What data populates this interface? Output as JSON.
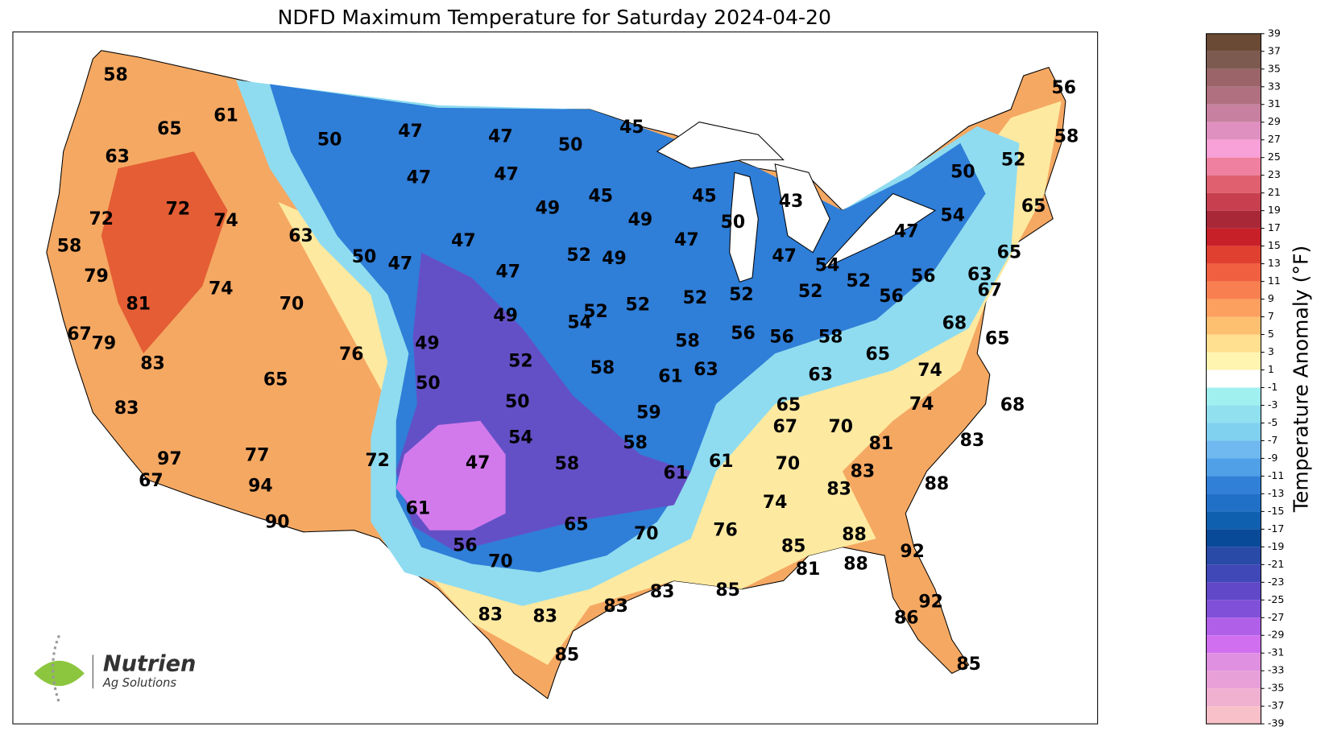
{
  "title": "NDFD Maximum Temperature for Saturday 2024-04-20",
  "map": {
    "labels": [
      58,
      65,
      61,
      50,
      47,
      47,
      50,
      45,
      63,
      47,
      47,
      52,
      50,
      56,
      58,
      72,
      74,
      72,
      49,
      45,
      49,
      45,
      50,
      43,
      65,
      54,
      47,
      58,
      63,
      47,
      50,
      47,
      52,
      49,
      47,
      65,
      79,
      74,
      47,
      47,
      54,
      52,
      56,
      63,
      81,
      70,
      49,
      52,
      54,
      52,
      52,
      52,
      52,
      56,
      67,
      67,
      79,
      49,
      58,
      56,
      56,
      58,
      68,
      65,
      83,
      76,
      52,
      58,
      61,
      63,
      63,
      65,
      74,
      65,
      50,
      50,
      65,
      74,
      68,
      83,
      59,
      67,
      70,
      81,
      83,
      97,
      77,
      72,
      54,
      47,
      58,
      58,
      61,
      61,
      70,
      83,
      88,
      67,
      94,
      83,
      74,
      61,
      65,
      70,
      76,
      88,
      92,
      90,
      56,
      70,
      85,
      81,
      88,
      83,
      85,
      83,
      83,
      83,
      92,
      86,
      85,
      85
    ]
  },
  "colorbar": {
    "label": "Temperature Anomaly (°F)",
    "lim": [
      -39,
      39
    ],
    "ticks": [
      39,
      37,
      35,
      33,
      31,
      29,
      27,
      25,
      23,
      21,
      19,
      17,
      15,
      13,
      11,
      9,
      7,
      5,
      3,
      1,
      -1,
      -3,
      -5,
      -7,
      -9,
      -11,
      -13,
      -15,
      -17,
      -19,
      -21,
      -23,
      -25,
      -27,
      -29,
      -31,
      -33,
      -35,
      -37,
      -39
    ],
    "colors": [
      "#6b4a35",
      "#7d5a50",
      "#9a6468",
      "#b07080",
      "#c880a0",
      "#e090c0",
      "#f8a0d8",
      "#f080a0",
      "#e06070",
      "#c84050",
      "#a82838",
      "#c82028",
      "#e04030",
      "#f06040",
      "#f88050",
      "#fca060",
      "#fdc070",
      "#fee090",
      "#fff4b0",
      "#ffffff",
      "#a0f0f0",
      "#90e0f0",
      "#80d0f0",
      "#70b8f0",
      "#50a0e8",
      "#3080d8",
      "#2070c8",
      "#1060b0",
      "#084a98",
      "#2a4aa8",
      "#4048b8",
      "#6048c8",
      "#8050d8",
      "#b060e8",
      "#d070f0",
      "#e090e0",
      "#e8a0d8",
      "#f0b0d0",
      "#f8c0c8"
    ]
  },
  "logo": {
    "name": "Nutrien",
    "tagline": "Ag Solutions"
  }
}
